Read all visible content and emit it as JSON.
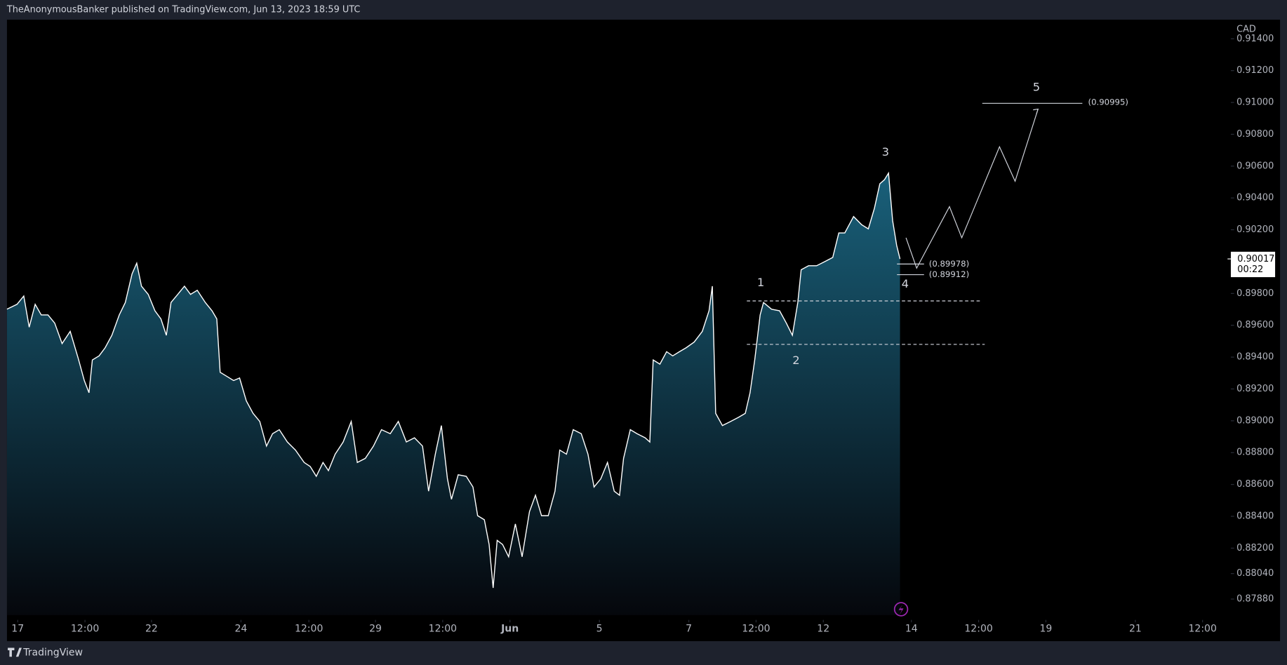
{
  "header": "TheAnonymousBanker published on TradingView.com, Jun 13, 2023 18:59 UTC",
  "footer": "TradingView",
  "chart_data": {
    "type": "area",
    "y_unit": "CAD",
    "line_color": "#ffffff",
    "fill_top": "#19607a",
    "fill_bottom": "#05070c",
    "x": [
      -0.16,
      -0.01,
      0.09,
      0.17,
      0.26,
      0.35,
      0.45,
      0.55,
      0.66,
      0.78,
      0.9,
      0.99,
      1.06,
      1.11,
      1.21,
      1.3,
      1.4,
      1.51,
      1.6,
      1.7,
      1.77,
      1.84,
      1.94,
      2.04,
      2.13,
      2.21,
      2.28,
      2.38,
      2.48,
      2.57,
      2.67,
      2.79,
      2.89,
      2.96,
      3.01,
      3.11,
      3.21,
      3.3,
      3.4,
      3.5,
      3.6,
      3.7,
      3.79,
      3.89,
      4.01,
      4.13,
      4.26,
      4.35,
      4.44,
      4.54,
      4.62,
      4.72,
      4.84,
      4.96,
      5.05,
      5.17,
      5.29,
      5.41,
      5.54,
      5.66,
      5.78,
      5.9,
      6.02,
      6.11,
      6.21,
      6.3,
      6.39,
      6.45,
      6.55,
      6.67,
      6.77,
      6.84,
      6.94,
      7.01,
      7.07,
      7.13,
      7.21,
      7.3,
      7.4,
      7.5,
      7.61,
      7.7,
      7.79,
      7.89,
      7.99,
      8.06,
      8.16,
      8.26,
      8.38,
      8.48,
      8.57,
      8.67,
      8.77,
      8.87,
      8.95,
      9.01,
      9.11,
      9.21,
      9.33,
      9.4,
      9.45,
      9.55,
      9.65,
      9.74,
      9.84,
      9.94,
      10.06,
      10.18,
      10.28,
      10.33,
      10.38,
      10.48,
      10.6,
      10.72,
      10.82,
      10.89,
      10.96,
      11.04,
      11.09,
      11.21,
      11.33,
      11.43,
      11.52,
      11.6,
      11.65,
      11.76,
      11.88,
      12.0,
      12.12,
      12.21,
      12.3,
      12.43,
      12.55,
      12.65,
      12.74,
      12.82,
      12.89,
      12.95,
      13.01,
      13.07,
      13.12
    ],
    "values": [
      0.89701,
      0.89732,
      0.89784,
      0.89588,
      0.89732,
      0.89665,
      0.89665,
      0.89614,
      0.89485,
      0.89562,
      0.89392,
      0.89253,
      0.89176,
      0.89382,
      0.89408,
      0.89459,
      0.89537,
      0.89665,
      0.89743,
      0.89923,
      0.8999,
      0.89846,
      0.89794,
      0.89691,
      0.8964,
      0.89537,
      0.89743,
      0.89794,
      0.89846,
      0.89794,
      0.8982,
      0.89743,
      0.89691,
      0.8964,
      0.89305,
      0.89279,
      0.89253,
      0.89269,
      0.89125,
      0.89047,
      0.88996,
      0.88841,
      0.88919,
      0.88944,
      0.88867,
      0.88816,
      0.88738,
      0.88713,
      0.88651,
      0.88738,
      0.88687,
      0.8879,
      0.88867,
      0.88996,
      0.88738,
      0.88764,
      0.88841,
      0.88944,
      0.88919,
      0.88996,
      0.88867,
      0.88893,
      0.88841,
      0.88558,
      0.8879,
      0.8897,
      0.88635,
      0.88507,
      0.88661,
      0.88651,
      0.88584,
      0.88404,
      0.88378,
      0.88223,
      0.8795,
      0.88249,
      0.88223,
      0.88146,
      0.88352,
      0.88146,
      0.88429,
      0.88532,
      0.88404,
      0.88404,
      0.88558,
      0.88816,
      0.8879,
      0.88944,
      0.88919,
      0.8879,
      0.88584,
      0.88635,
      0.88738,
      0.88558,
      0.88532,
      0.88764,
      0.88944,
      0.88919,
      0.88893,
      0.88867,
      0.89382,
      0.89356,
      0.89434,
      0.89408,
      0.89434,
      0.89459,
      0.89495,
      0.89562,
      0.89691,
      0.89846,
      0.89047,
      0.8897,
      0.88996,
      0.89022,
      0.89047,
      0.89176,
      0.89382,
      0.89665,
      0.89743,
      0.89701,
      0.89691,
      0.89614,
      0.89537,
      0.89743,
      0.89949,
      0.89974,
      0.89974,
      0.9,
      0.90026,
      0.9018,
      0.9018,
      0.90283,
      0.90232,
      0.90206,
      0.90335,
      0.90489,
      0.90515,
      0.90556,
      0.90258,
      0.90103,
      0.90017
    ],
    "xlim": [
      -0.16,
      18.04
    ],
    "ylim": [
      0.8778,
      0.9152
    ],
    "xticks": [
      {
        "value": 0,
        "label": "17"
      },
      {
        "value": 1,
        "label": "12:00"
      },
      {
        "value": 1.99,
        "label": "22"
      },
      {
        "value": 3.32,
        "label": "24"
      },
      {
        "value": 4.33,
        "label": "12:00"
      },
      {
        "value": 5.32,
        "label": "29"
      },
      {
        "value": 6.32,
        "label": "12:00"
      },
      {
        "value": 7.32,
        "label": "Jun"
      },
      {
        "value": 8.65,
        "label": "5"
      },
      {
        "value": 9.98,
        "label": "7"
      },
      {
        "value": 10.98,
        "label": "12:00"
      },
      {
        "value": 11.98,
        "label": "12"
      },
      {
        "value": 13.29,
        "label": "14"
      },
      {
        "value": 14.29,
        "label": "12:00"
      },
      {
        "value": 15.29,
        "label": "19"
      },
      {
        "value": 16.62,
        "label": "21"
      },
      {
        "value": 17.62,
        "label": "12:00"
      }
    ],
    "yticks": [
      {
        "value": 0.914,
        "label": "0.91400"
      },
      {
        "value": 0.912,
        "label": "0.91200"
      },
      {
        "value": 0.91,
        "label": "0.91000"
      },
      {
        "value": 0.908,
        "label": "0.90800"
      },
      {
        "value": 0.906,
        "label": "0.90600"
      },
      {
        "value": 0.904,
        "label": "0.90400"
      },
      {
        "value": 0.902,
        "label": "0.90200"
      },
      {
        "value": 0.898,
        "label": "0.89800"
      },
      {
        "value": 0.896,
        "label": "0.89600"
      },
      {
        "value": 0.894,
        "label": "0.89400"
      },
      {
        "value": 0.892,
        "label": "0.89200"
      },
      {
        "value": 0.89,
        "label": "0.89000"
      },
      {
        "value": 0.888,
        "label": "0.88800"
      },
      {
        "value": 0.886,
        "label": "0.88600"
      },
      {
        "value": 0.884,
        "label": "0.88400"
      },
      {
        "value": 0.882,
        "label": "0.88200"
      },
      {
        "value": 0.8804,
        "label": "0.88040"
      },
      {
        "value": 0.8788,
        "label": "0.87880"
      }
    ],
    "last_price": 0.90017,
    "countdown": "00:22",
    "annotations": [
      "1",
      "2",
      "3",
      "4",
      "5",
      "(0.89978)",
      "(0.89912)",
      "(0.90995)"
    ]
  }
}
